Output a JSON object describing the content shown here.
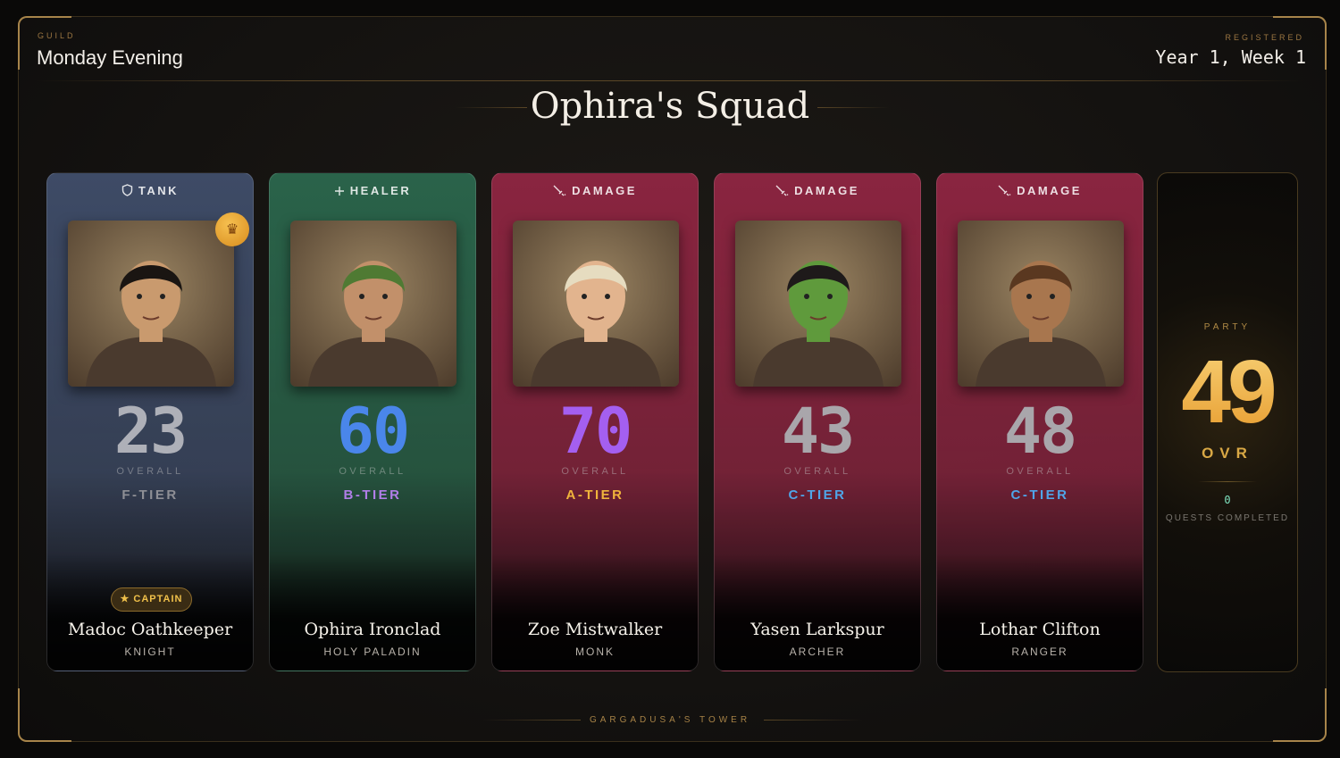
{
  "header": {
    "guild_label": "GUILD",
    "guild_name": "Monday Evening",
    "registered_label": "REGISTERED",
    "registered_value": "Year 1, Week 1"
  },
  "title": "Ophira's Squad",
  "members": [
    {
      "role": "TANK",
      "role_icon": "shield-icon",
      "score": "23",
      "overall_label": "OVERALL",
      "tier": "F-TIER",
      "name": "Madoc Oathkeeper",
      "class": "KNIGHT",
      "badge": "CAPTAIN",
      "score_color": "#aeb0b8",
      "tier_color": "#8e8f95",
      "card_color": "#3e4b66"
    },
    {
      "role": "HEALER",
      "role_icon": "plus-icon",
      "score": "60",
      "overall_label": "OVERALL",
      "tier": "B-TIER",
      "name": "Ophira Ironclad",
      "class": "HOLY PALADIN",
      "score_color": "#4a86ea",
      "tier_color": "#b17ee8",
      "card_color": "#2a634a"
    },
    {
      "role": "DAMAGE",
      "role_icon": "sword-icon",
      "score": "70",
      "overall_label": "OVERALL",
      "tier": "A-TIER",
      "name": "Zoe Mistwalker",
      "class": "MONK",
      "score_color": "#a45ff0",
      "tier_color": "#f0b43c",
      "card_color": "#8a2540"
    },
    {
      "role": "DAMAGE",
      "role_icon": "sword-icon",
      "score": "43",
      "overall_label": "OVERALL",
      "tier": "C-TIER",
      "name": "Yasen Larkspur",
      "class": "ARCHER",
      "score_color": "#a9a6ab",
      "tier_color": "#4fa5e8",
      "card_color": "#8a2540"
    },
    {
      "role": "DAMAGE",
      "role_icon": "sword-icon",
      "score": "48",
      "overall_label": "OVERALL",
      "tier": "C-TIER",
      "name": "Lothar Clifton",
      "class": "RANGER",
      "score_color": "#a9a6ab",
      "tier_color": "#4fa5e8",
      "card_color": "#8a2540"
    }
  ],
  "party": {
    "label": "PARTY",
    "value": "49",
    "ovr_label": "OVR",
    "quests_value": "0",
    "quests_label": "QUESTS COMPLETED"
  },
  "footer": "GARGADUSA'S TOWER"
}
